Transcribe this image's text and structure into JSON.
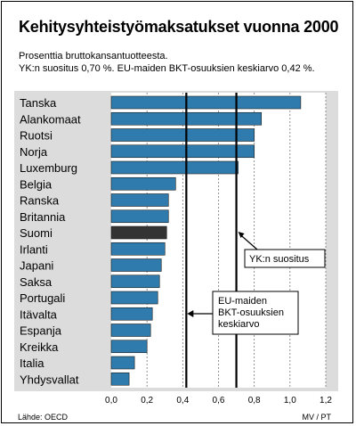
{
  "header": {
    "title": "Kehitysyhteistyömaksatukset vuonna 2000",
    "subtitle_1": "Prosenttia bruttokansantuotteesta.",
    "subtitle_2": "YK:n suositus 0,70 %.  EU-maiden BKT-osuuksien keskiarvo 0,42 %."
  },
  "footer": {
    "source": "Lähde: OECD",
    "credit": "MV / PT"
  },
  "colors": {
    "bar": "#2f7bad",
    "highlight_bar": "#333333",
    "panel_background": "#dcdcdc",
    "plot_background": "#ffffff"
  },
  "chart_data": {
    "type": "bar",
    "orientation": "horizontal",
    "title": "Kehitysyhteistyömaksatukset vuonna 2000",
    "categories": [
      "Tanska",
      "Alankomaat",
      "Ruotsi",
      "Norja",
      "Luxemburg",
      "Belgia",
      "Ranska",
      "Britannia",
      "Suomi",
      "Irlanti",
      "Japani",
      "Saksa",
      "Portugali",
      "Itävalta",
      "Espanja",
      "Kreikka",
      "Italia",
      "Yhdysvallat"
    ],
    "values": [
      1.06,
      0.84,
      0.8,
      0.8,
      0.71,
      0.36,
      0.32,
      0.32,
      0.31,
      0.3,
      0.28,
      0.27,
      0.26,
      0.23,
      0.22,
      0.2,
      0.13,
      0.1
    ],
    "highlight_category": "Suomi",
    "xlim": [
      0,
      1.2
    ],
    "x_ticks": [
      "0,0",
      "0,2",
      "0,4",
      "0,6",
      "0,8",
      "1,0",
      "1,2"
    ],
    "grid": "vertical dashed",
    "reference_lines": [
      {
        "value": 0.7,
        "label_lines": [
          "YK:n suositus"
        ]
      },
      {
        "value": 0.42,
        "label_lines": [
          "EU-maiden",
          "BKT-osuuksien",
          "keskiarvo"
        ]
      }
    ]
  }
}
